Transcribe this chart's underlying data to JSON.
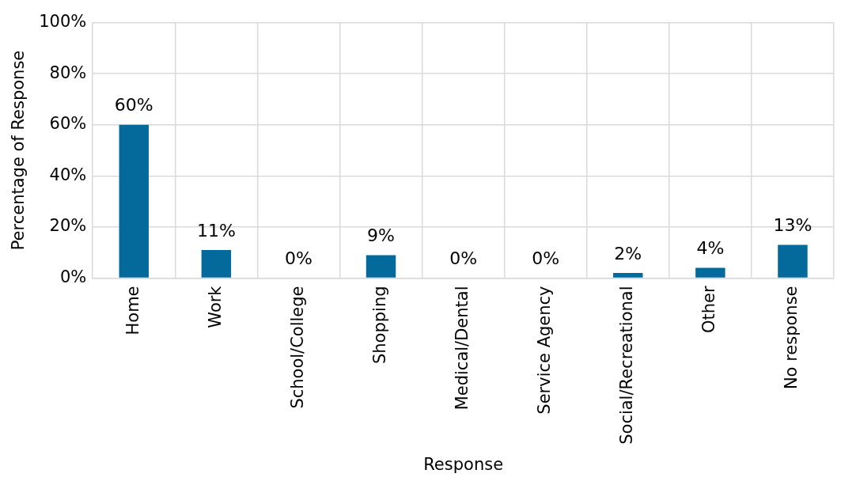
{
  "chart_data": {
    "type": "bar",
    "xlabel": "Response",
    "ylabel": "Percentage of Response",
    "categories": [
      "Home",
      "Work",
      "School/College",
      "Shopping",
      "Medical/Dental",
      "Service Agency",
      "Social/Recreational",
      "Other",
      "No response"
    ],
    "values": [
      60,
      11,
      0,
      9,
      0,
      0,
      2,
      4,
      13
    ],
    "value_labels": [
      "60%",
      "11%",
      "0%",
      "9%",
      "0%",
      "0%",
      "2%",
      "4%",
      "13%"
    ],
    "color": "#046a9b",
    "ylim": [
      0,
      100
    ],
    "yticks": [
      {
        "value": 0,
        "label": "0%"
      },
      {
        "value": 20,
        "label": "20%"
      },
      {
        "value": 40,
        "label": "40%"
      },
      {
        "value": 60,
        "label": "60%"
      },
      {
        "value": 80,
        "label": "80%"
      },
      {
        "value": 100,
        "label": "100%"
      }
    ],
    "grid": true,
    "legend": false
  }
}
